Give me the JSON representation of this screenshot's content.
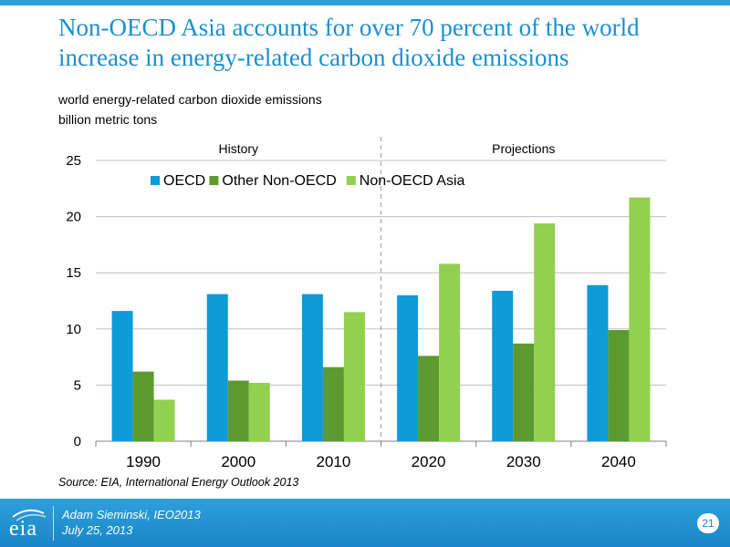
{
  "slide": {
    "title": "Non-OECD Asia accounts for over 70 percent of the world increase in energy-related carbon dioxide emissions",
    "subtitle_line1": "world energy-related carbon dioxide emissions",
    "subtitle_line2": "billion metric tons",
    "source": "Source:  EIA, International Energy Outlook 2013"
  },
  "footer": {
    "author": "Adam Sieminski, IEO2013",
    "date": "July 25, 2013",
    "page_number": "21",
    "logo_text": "eia"
  },
  "colors": {
    "accent": "#2a9fd8",
    "oecd": "#0e9bd8",
    "other_non_oecd": "#5b9b2e",
    "non_oecd_asia": "#92d050"
  },
  "chart_data": {
    "type": "bar",
    "title": "",
    "xlabel": "",
    "ylabel": "billion metric tons",
    "ylim": [
      0,
      25
    ],
    "yticks": [
      0,
      5,
      10,
      15,
      20,
      25
    ],
    "grid": true,
    "legend_position": "top",
    "categories": [
      "1990",
      "2000",
      "2010",
      "2020",
      "2030",
      "2040"
    ],
    "series": [
      {
        "name": "OECD",
        "color": "#0e9bd8",
        "values": [
          11.6,
          13.1,
          13.1,
          13.0,
          13.4,
          13.9
        ]
      },
      {
        "name": "Other Non-OECD",
        "color": "#5b9b2e",
        "values": [
          6.2,
          5.4,
          6.6,
          7.6,
          8.7,
          9.9
        ]
      },
      {
        "name": "Non-OECD Asia",
        "color": "#92d050",
        "values": [
          3.7,
          5.2,
          11.5,
          15.8,
          19.4,
          21.7
        ]
      }
    ],
    "annotations": [
      {
        "text": "History",
        "category_span": [
          "1990",
          "2010"
        ]
      },
      {
        "text": "Projections",
        "category_span": [
          "2020",
          "2040"
        ]
      }
    ],
    "divider_between": [
      "2010",
      "2020"
    ]
  }
}
